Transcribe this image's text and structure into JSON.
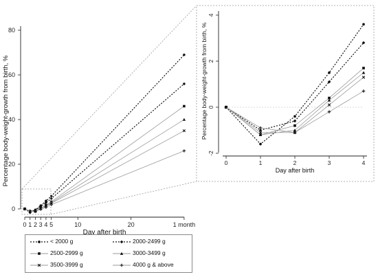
{
  "chart_data": [
    {
      "type": "line",
      "xlabel": "Day after birth",
      "ylabel": "Percentage body-weight-growth from birth, %",
      "x": [
        0,
        1,
        2,
        3,
        4,
        5,
        30
      ],
      "x_tick_labels": [
        "0",
        "1",
        "2",
        "3",
        "4",
        "5",
        "10",
        "20",
        "1 month"
      ],
      "x_tick_values": [
        0,
        1,
        2,
        3,
        4,
        5,
        10,
        20,
        30
      ],
      "y_ticks": [
        0,
        20,
        40,
        60,
        80
      ],
      "ylim": [
        -3,
        82
      ],
      "grid": false,
      "series": [
        {
          "name": "< 2000 g",
          "values": [
            0,
            -1.6,
            -0.4,
            1.5,
            3.6,
            5.7,
            69
          ]
        },
        {
          "name": "2000-2499 g",
          "values": [
            0,
            -1.0,
            -0.6,
            1.1,
            2.8,
            4.6,
            56
          ]
        },
        {
          "name": "2500-2999 g",
          "values": [
            0,
            -1.2,
            -0.8,
            0.4,
            1.7,
            3.2,
            46
          ]
        },
        {
          "name": "3000-3499 g",
          "values": [
            0,
            -1.2,
            -1.0,
            0.3,
            1.5,
            2.8,
            40
          ]
        },
        {
          "name": "3500-3999 g",
          "values": [
            0,
            -1.1,
            -1.1,
            0.1,
            1.3,
            2.5,
            35
          ]
        },
        {
          "name": "4000 g & above",
          "values": [
            0,
            -0.9,
            -1.1,
            -0.2,
            0.7,
            1.9,
            26
          ]
        }
      ]
    },
    {
      "type": "line",
      "xlabel": "Day after birth",
      "ylabel": "Percentage body-weight-growth from birth, %",
      "x": [
        0,
        1,
        2,
        3,
        4
      ],
      "x_ticks": [
        0,
        1,
        2,
        3,
        4
      ],
      "y_ticks": [
        -2,
        0,
        2,
        4
      ],
      "ylim": [
        -2.2,
        4.2
      ],
      "grid": false,
      "series": [
        {
          "name": "< 2000 g",
          "values": [
            0,
            -1.6,
            -0.4,
            1.5,
            3.6
          ]
        },
        {
          "name": "2000-2499 g",
          "values": [
            0,
            -1.0,
            -0.6,
            1.1,
            2.8
          ]
        },
        {
          "name": "2500-2999 g",
          "values": [
            0,
            -1.2,
            -0.8,
            0.4,
            1.7
          ]
        },
        {
          "name": "3000-3499 g",
          "values": [
            0,
            -1.2,
            -1.0,
            0.3,
            1.5
          ]
        },
        {
          "name": "3500-3999 g",
          "values": [
            0,
            -1.1,
            -1.1,
            0.1,
            1.3
          ]
        },
        {
          "name": "4000 g & above",
          "values": [
            0,
            -0.9,
            -1.1,
            -0.2,
            0.7
          ]
        }
      ]
    }
  ],
  "legend": {
    "entries": [
      "< 2000 g",
      "2000-2499 g",
      "2500-2999 g",
      "3000-3499 g",
      "3500-3999 g",
      "4000 g & above"
    ],
    "placement": "bottom"
  },
  "styles": [
    {
      "marker": "circle",
      "dash": "dot",
      "color": "#111111"
    },
    {
      "marker": "diamond",
      "dash": "dot",
      "color": "#111111"
    },
    {
      "marker": "square",
      "dash": "solid",
      "color": "#9a9a9a"
    },
    {
      "marker": "triangle",
      "dash": "solid",
      "color": "#9a9a9a"
    },
    {
      "marker": "x",
      "dash": "solid",
      "color": "#9a9a9a"
    },
    {
      "marker": "plus",
      "dash": "solid",
      "color": "#9a9a9a"
    }
  ]
}
